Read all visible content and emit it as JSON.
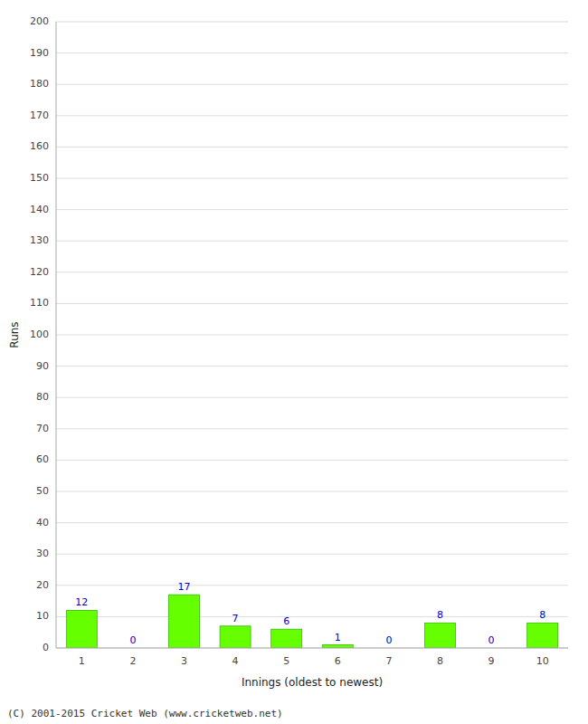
{
  "chart_data": {
    "type": "bar",
    "xlabel": "Innings (oldest to newest)",
    "ylabel": "Runs",
    "categories": [
      "1",
      "2",
      "3",
      "4",
      "5",
      "6",
      "7",
      "8",
      "9",
      "10"
    ],
    "values": [
      12,
      0,
      17,
      7,
      6,
      1,
      0,
      8,
      0,
      8
    ],
    "color": "#66ff00",
    "ylim": [
      0,
      200
    ],
    "yticks": [
      0,
      10,
      20,
      30,
      40,
      50,
      60,
      70,
      80,
      90,
      100,
      110,
      120,
      130,
      140,
      150,
      160,
      170,
      180,
      190,
      200
    ],
    "grid": true,
    "data_labels": true,
    "annotations": [
      "(C) 2001-2015 Cricket Web (www.cricketweb.net)"
    ]
  }
}
